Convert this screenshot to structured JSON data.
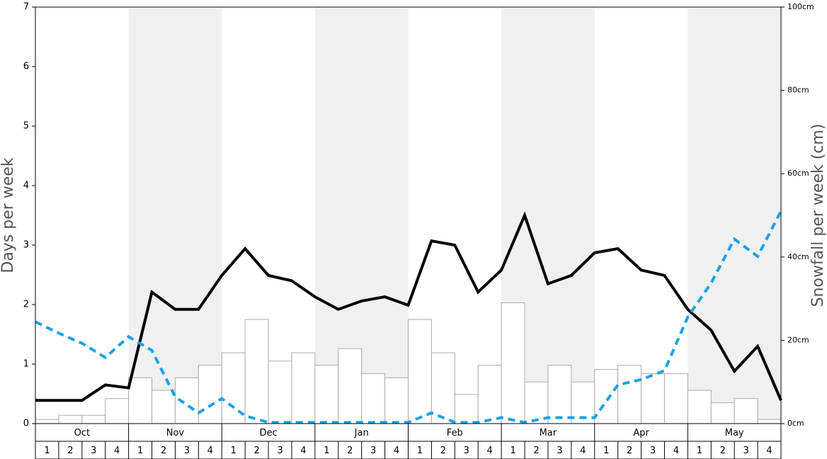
{
  "chart_data": {
    "type": "bar",
    "ylabel": "Days per week",
    "y2label": "Snowfall per week (cm)",
    "ylim": [
      0,
      7
    ],
    "yticks": [
      0,
      1,
      2,
      3,
      4,
      5,
      6,
      7
    ],
    "y2lim": [
      0,
      100
    ],
    "y2ticks": [
      {
        "value": 0,
        "label": "0cm"
      },
      {
        "value": 20,
        "label": "20cm"
      },
      {
        "value": 40,
        "label": "40cm"
      },
      {
        "value": 60,
        "label": "60cm"
      },
      {
        "value": 80,
        "label": "80cm"
      },
      {
        "value": 100,
        "label": "100cm"
      }
    ],
    "months": [
      "Oct",
      "Nov",
      "Dec",
      "Jan",
      "Feb",
      "Mar",
      "Apr",
      "May"
    ],
    "categories": [
      "1",
      "2",
      "3",
      "4",
      "1",
      "2",
      "3",
      "4",
      "1",
      "2",
      "3",
      "4",
      "1",
      "2",
      "3",
      "4",
      "1",
      "2",
      "3",
      "4",
      "1",
      "2",
      "3",
      "4",
      "1",
      "2",
      "3",
      "4",
      "1",
      "2",
      "3",
      "4"
    ],
    "xlim": [
      0,
      32
    ],
    "series": [
      {
        "type": "bar",
        "axis": "y2",
        "color": "#ffffff",
        "values": [
          1,
          2,
          2,
          6,
          11,
          8,
          11,
          14,
          17,
          25,
          15,
          17,
          14,
          18,
          12,
          11,
          25,
          17,
          7,
          14,
          29,
          10,
          14,
          10,
          13,
          14,
          12,
          12,
          8,
          5,
          6,
          1
        ]
      },
      {
        "type": "line",
        "color": "#000000",
        "dash": false,
        "x": [
          0,
          1,
          2,
          3,
          4,
          5,
          6,
          7,
          8,
          9,
          10,
          11,
          12,
          13,
          14,
          15,
          16,
          17,
          18,
          19,
          20,
          21,
          22,
          23,
          24,
          25,
          26,
          27,
          28,
          29,
          30,
          31,
          32
        ],
        "values": [
          0.39,
          0.39,
          0.39,
          0.65,
          0.6,
          2.21,
          1.92,
          1.92,
          2.49,
          2.94,
          2.49,
          2.4,
          2.13,
          1.92,
          2.06,
          2.13,
          1.99,
          3.07,
          3.0,
          2.21,
          2.58,
          3.5,
          2.35,
          2.49,
          2.87,
          2.94,
          2.58,
          2.49,
          1.92,
          1.57,
          0.88,
          1.3,
          0.39
        ]
      },
      {
        "type": "line",
        "color": "#1ba1e2",
        "dash": true,
        "x": [
          0,
          1,
          2,
          3,
          4,
          5,
          6,
          7,
          8,
          9,
          10,
          11,
          12,
          13,
          14,
          15,
          16,
          17,
          18,
          19,
          20,
          21,
          22,
          23,
          24,
          25,
          26,
          27,
          28,
          29,
          30,
          31,
          32
        ],
        "values": [
          1.71,
          1.52,
          1.35,
          1.11,
          1.46,
          1.23,
          0.45,
          0.18,
          0.42,
          0.13,
          0.02,
          0.02,
          0.02,
          0.02,
          0.02,
          0.02,
          0.02,
          0.18,
          0.02,
          0.02,
          0.1,
          0.02,
          0.1,
          0.1,
          0.1,
          0.65,
          0.74,
          0.89,
          1.79,
          2.36,
          3.1,
          2.81,
          3.57
        ]
      }
    ]
  }
}
